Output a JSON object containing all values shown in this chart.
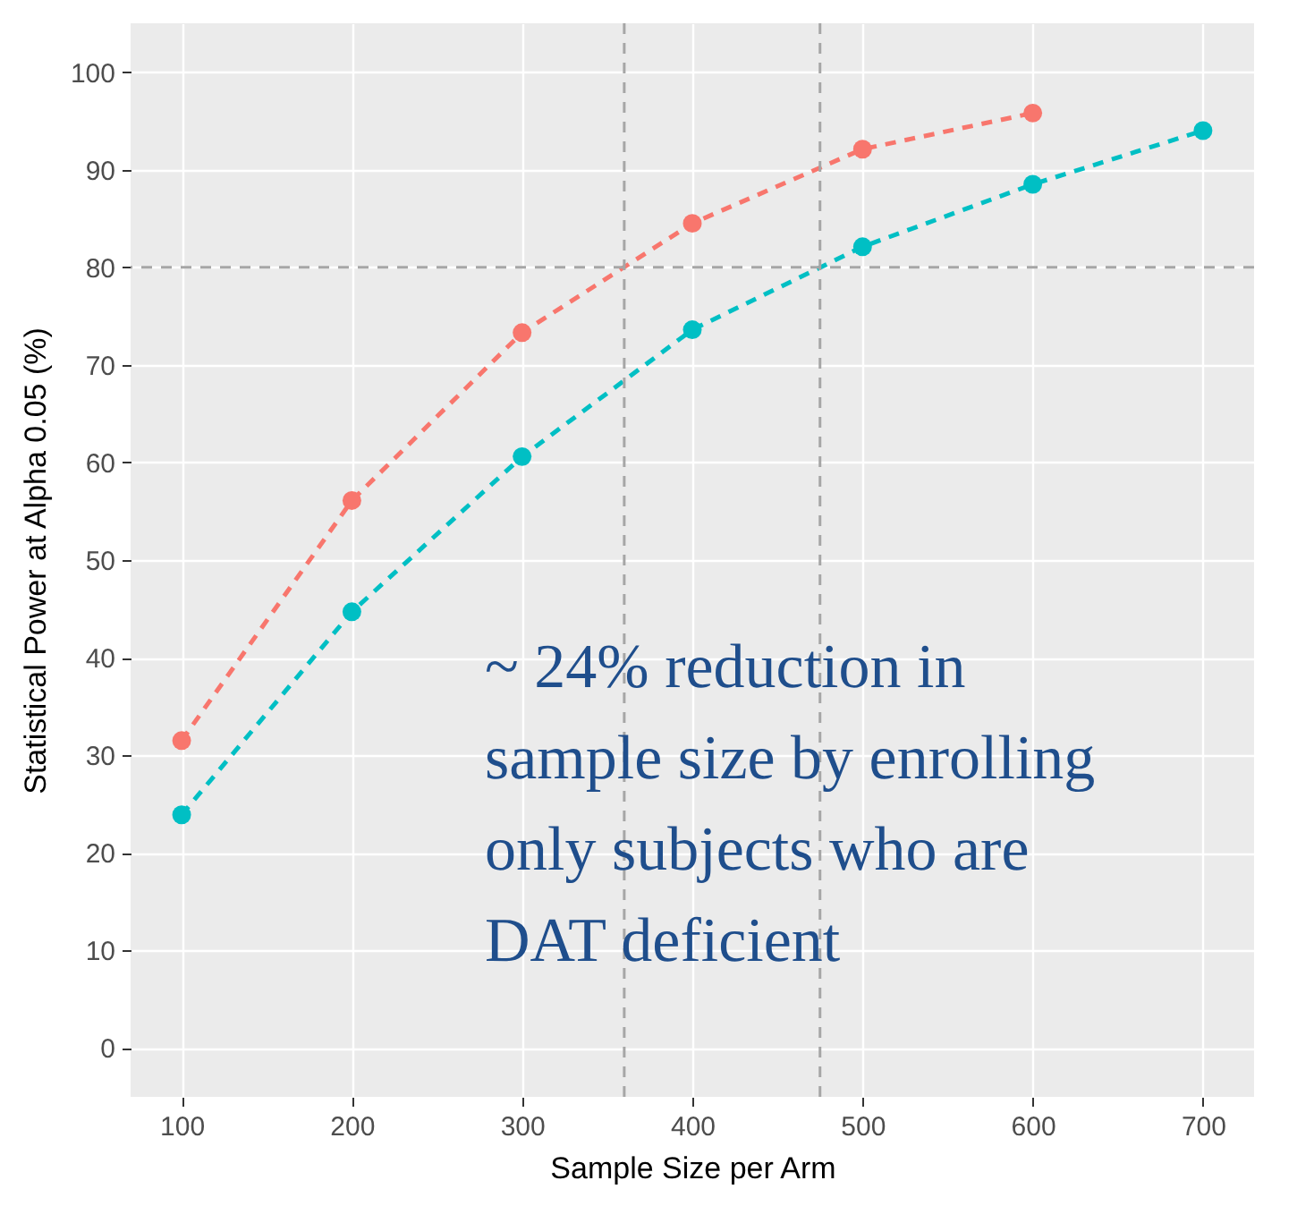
{
  "chart_data": {
    "type": "line",
    "xlabel": "Sample Size per Arm",
    "ylabel": "Statistical Power at Alpha 0.05 (%)",
    "x": [
      100,
      200,
      300,
      400,
      500,
      600,
      700
    ],
    "series": [
      {
        "color": "#f8766d",
        "values": [
          31.5,
          56.1,
          73.3,
          84.5,
          92.1,
          95.8,
          null
        ]
      },
      {
        "color": "#00bfc4",
        "values": [
          23.9,
          44.7,
          60.6,
          73.6,
          82.1,
          88.5,
          94.0
        ]
      }
    ],
    "xlim": [
      70,
      730
    ],
    "ylim": [
      -5,
      105
    ],
    "xticks": [
      100,
      200,
      300,
      400,
      500,
      600,
      700
    ],
    "yticks": [
      0,
      10,
      20,
      30,
      40,
      50,
      60,
      70,
      80,
      90,
      100
    ],
    "ref_lines": [
      {
        "axis": "x",
        "value": 360,
        "color": "#a6a6a6",
        "line_style": "dashed"
      },
      {
        "axis": "x",
        "value": 475,
        "color": "#a6a6a6",
        "line_style": "dashed"
      },
      {
        "axis": "y",
        "value": 80,
        "color": "#a6a6a6",
        "line_style": "dashed"
      }
    ],
    "annotations": [
      "~ 24% reduction in\nsample size by enrolling\nonly subjects who are\nDAT deficient"
    ],
    "grid": true,
    "legend": false,
    "marker": "circle",
    "line_style": "dashed"
  }
}
